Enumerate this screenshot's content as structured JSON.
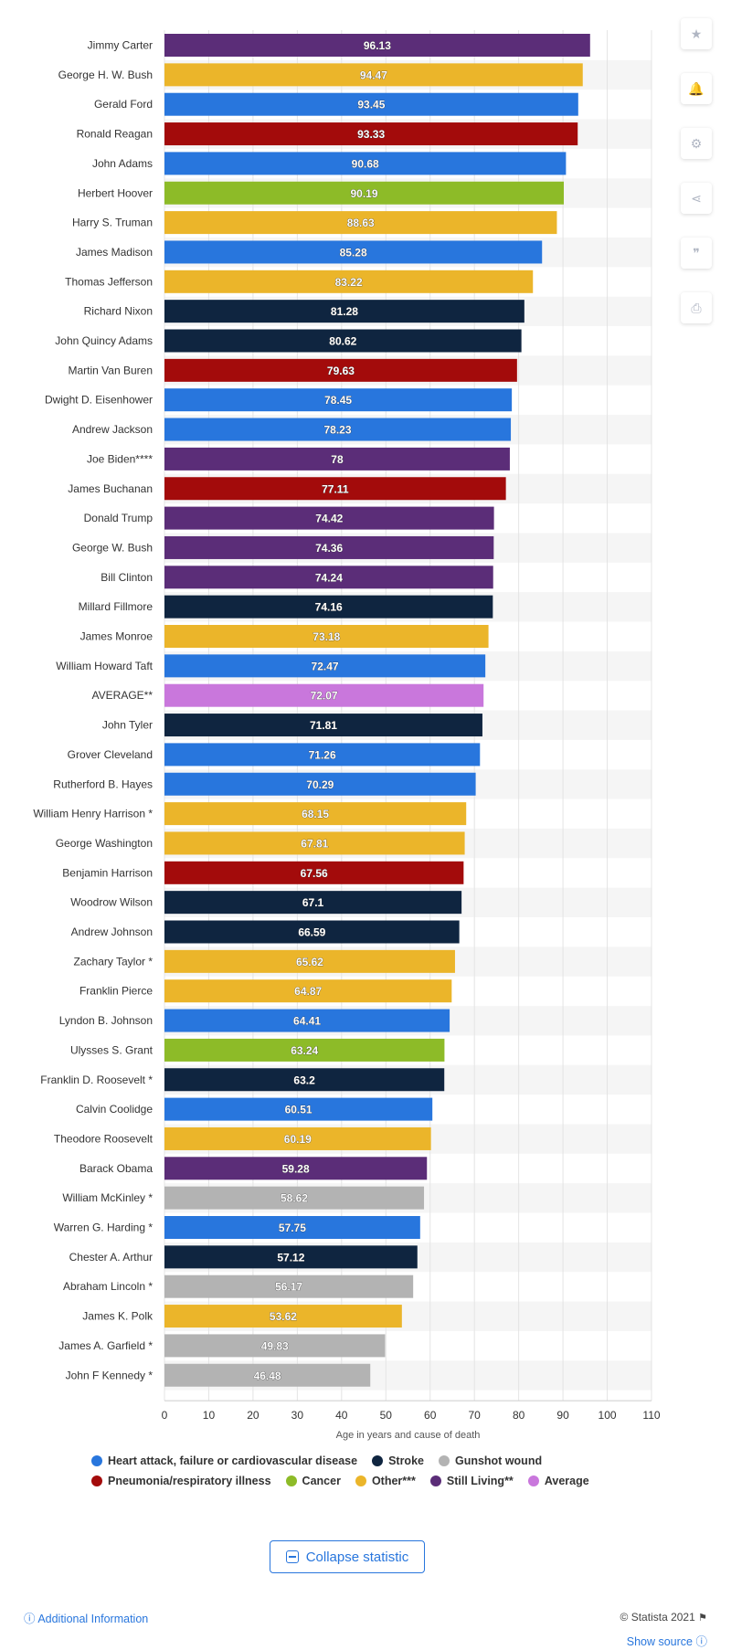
{
  "chart_data": {
    "type": "bar",
    "orientation": "horizontal",
    "xlabel": "Age in years and cause of death",
    "xlim": [
      0,
      110
    ],
    "xticks": [
      0,
      10,
      20,
      30,
      40,
      50,
      60,
      70,
      80,
      90,
      100,
      110
    ],
    "grid": true,
    "legend_placement": "bottom",
    "colors": {
      "heart": "#2876dd",
      "stroke": "#0f2540",
      "gunshot": "#b3b3b3",
      "pneumonia": "#a30b0b",
      "cancer": "#8dbb28",
      "other": "#ebb52a",
      "living": "#5b2d78",
      "average": "#c977dc"
    },
    "legend": [
      {
        "key": "heart",
        "label": "Heart attack, failure or cardiovascular disease"
      },
      {
        "key": "stroke",
        "label": "Stroke"
      },
      {
        "key": "gunshot",
        "label": "Gunshot wound"
      },
      {
        "key": "pneumonia",
        "label": "Pneumonia/respiratory illness"
      },
      {
        "key": "cancer",
        "label": "Cancer"
      },
      {
        "key": "other",
        "label": "Other***"
      },
      {
        "key": "living",
        "label": "Still Living**"
      },
      {
        "key": "average",
        "label": "Average"
      }
    ],
    "bars": [
      {
        "label": "Jimmy Carter",
        "value": 96.13,
        "cause": "living"
      },
      {
        "label": "George H. W. Bush",
        "value": 94.47,
        "cause": "other"
      },
      {
        "label": "Gerald Ford",
        "value": 93.45,
        "cause": "heart"
      },
      {
        "label": "Ronald Reagan",
        "value": 93.33,
        "cause": "pneumonia"
      },
      {
        "label": "John Adams",
        "value": 90.68,
        "cause": "heart"
      },
      {
        "label": "Herbert Hoover",
        "value": 90.19,
        "cause": "cancer"
      },
      {
        "label": "Harry S. Truman",
        "value": 88.63,
        "cause": "other"
      },
      {
        "label": "James Madison",
        "value": 85.28,
        "cause": "heart"
      },
      {
        "label": "Thomas Jefferson",
        "value": 83.22,
        "cause": "other"
      },
      {
        "label": "Richard Nixon",
        "value": 81.28,
        "cause": "stroke"
      },
      {
        "label": "John Quincy Adams",
        "value": 80.62,
        "cause": "stroke"
      },
      {
        "label": "Martin Van Buren",
        "value": 79.63,
        "cause": "pneumonia"
      },
      {
        "label": "Dwight D. Eisenhower",
        "value": 78.45,
        "cause": "heart"
      },
      {
        "label": "Andrew Jackson",
        "value": 78.23,
        "cause": "heart"
      },
      {
        "label": "Joe Biden****",
        "value": 78,
        "cause": "living"
      },
      {
        "label": "James Buchanan",
        "value": 77.11,
        "cause": "pneumonia"
      },
      {
        "label": "Donald Trump",
        "value": 74.42,
        "cause": "living"
      },
      {
        "label": "George W. Bush",
        "value": 74.36,
        "cause": "living"
      },
      {
        "label": "Bill Clinton",
        "value": 74.24,
        "cause": "living"
      },
      {
        "label": "Millard Fillmore",
        "value": 74.16,
        "cause": "stroke"
      },
      {
        "label": "James Monroe",
        "value": 73.18,
        "cause": "other"
      },
      {
        "label": "William Howard Taft",
        "value": 72.47,
        "cause": "heart"
      },
      {
        "label": "AVERAGE**",
        "value": 72.07,
        "cause": "average"
      },
      {
        "label": "John Tyler",
        "value": 71.81,
        "cause": "stroke"
      },
      {
        "label": "Grover Cleveland",
        "value": 71.26,
        "cause": "heart"
      },
      {
        "label": "Rutherford B. Hayes",
        "value": 70.29,
        "cause": "heart"
      },
      {
        "label": "William Henry Harrison *",
        "value": 68.15,
        "cause": "other"
      },
      {
        "label": "George Washington",
        "value": 67.81,
        "cause": "other"
      },
      {
        "label": "Benjamin Harrison",
        "value": 67.56,
        "cause": "pneumonia"
      },
      {
        "label": "Woodrow Wilson",
        "value": 67.1,
        "cause": "stroke"
      },
      {
        "label": "Andrew Johnson",
        "value": 66.59,
        "cause": "stroke"
      },
      {
        "label": "Zachary Taylor *",
        "value": 65.62,
        "cause": "other"
      },
      {
        "label": "Franklin Pierce",
        "value": 64.87,
        "cause": "other"
      },
      {
        "label": "Lyndon B. Johnson",
        "value": 64.41,
        "cause": "heart"
      },
      {
        "label": "Ulysses S. Grant",
        "value": 63.24,
        "cause": "cancer"
      },
      {
        "label": "Franklin D. Roosevelt *",
        "value": 63.2,
        "cause": "stroke"
      },
      {
        "label": "Calvin Coolidge",
        "value": 60.51,
        "cause": "heart"
      },
      {
        "label": "Theodore Roosevelt",
        "value": 60.19,
        "cause": "other"
      },
      {
        "label": "Barack Obama",
        "value": 59.28,
        "cause": "living"
      },
      {
        "label": "William McKinley *",
        "value": 58.62,
        "cause": "gunshot"
      },
      {
        "label": "Warren G. Harding *",
        "value": 57.75,
        "cause": "heart"
      },
      {
        "label": "Chester A. Arthur",
        "value": 57.12,
        "cause": "stroke"
      },
      {
        "label": "Abraham Lincoln *",
        "value": 56.17,
        "cause": "gunshot"
      },
      {
        "label": "James K. Polk",
        "value": 53.62,
        "cause": "other"
      },
      {
        "label": "James A. Garfield *",
        "value": 49.83,
        "cause": "gunshot"
      },
      {
        "label": "John F Kennedy *",
        "value": 46.48,
        "cause": "gunshot"
      }
    ]
  },
  "side_buttons": [
    {
      "name": "star-icon",
      "glyph": "★"
    },
    {
      "name": "bell-icon",
      "glyph": "🔔"
    },
    {
      "name": "gear-icon",
      "glyph": "⚙"
    },
    {
      "name": "share-icon",
      "glyph": "⋖"
    },
    {
      "name": "quote-icon",
      "glyph": "❞"
    },
    {
      "name": "print-icon",
      "glyph": "⎙"
    }
  ],
  "collapse_label": "Collapse statistic",
  "footer": {
    "credit": "© Statista 2021",
    "additional_info": "Additional Information",
    "show_source": "Show source"
  }
}
